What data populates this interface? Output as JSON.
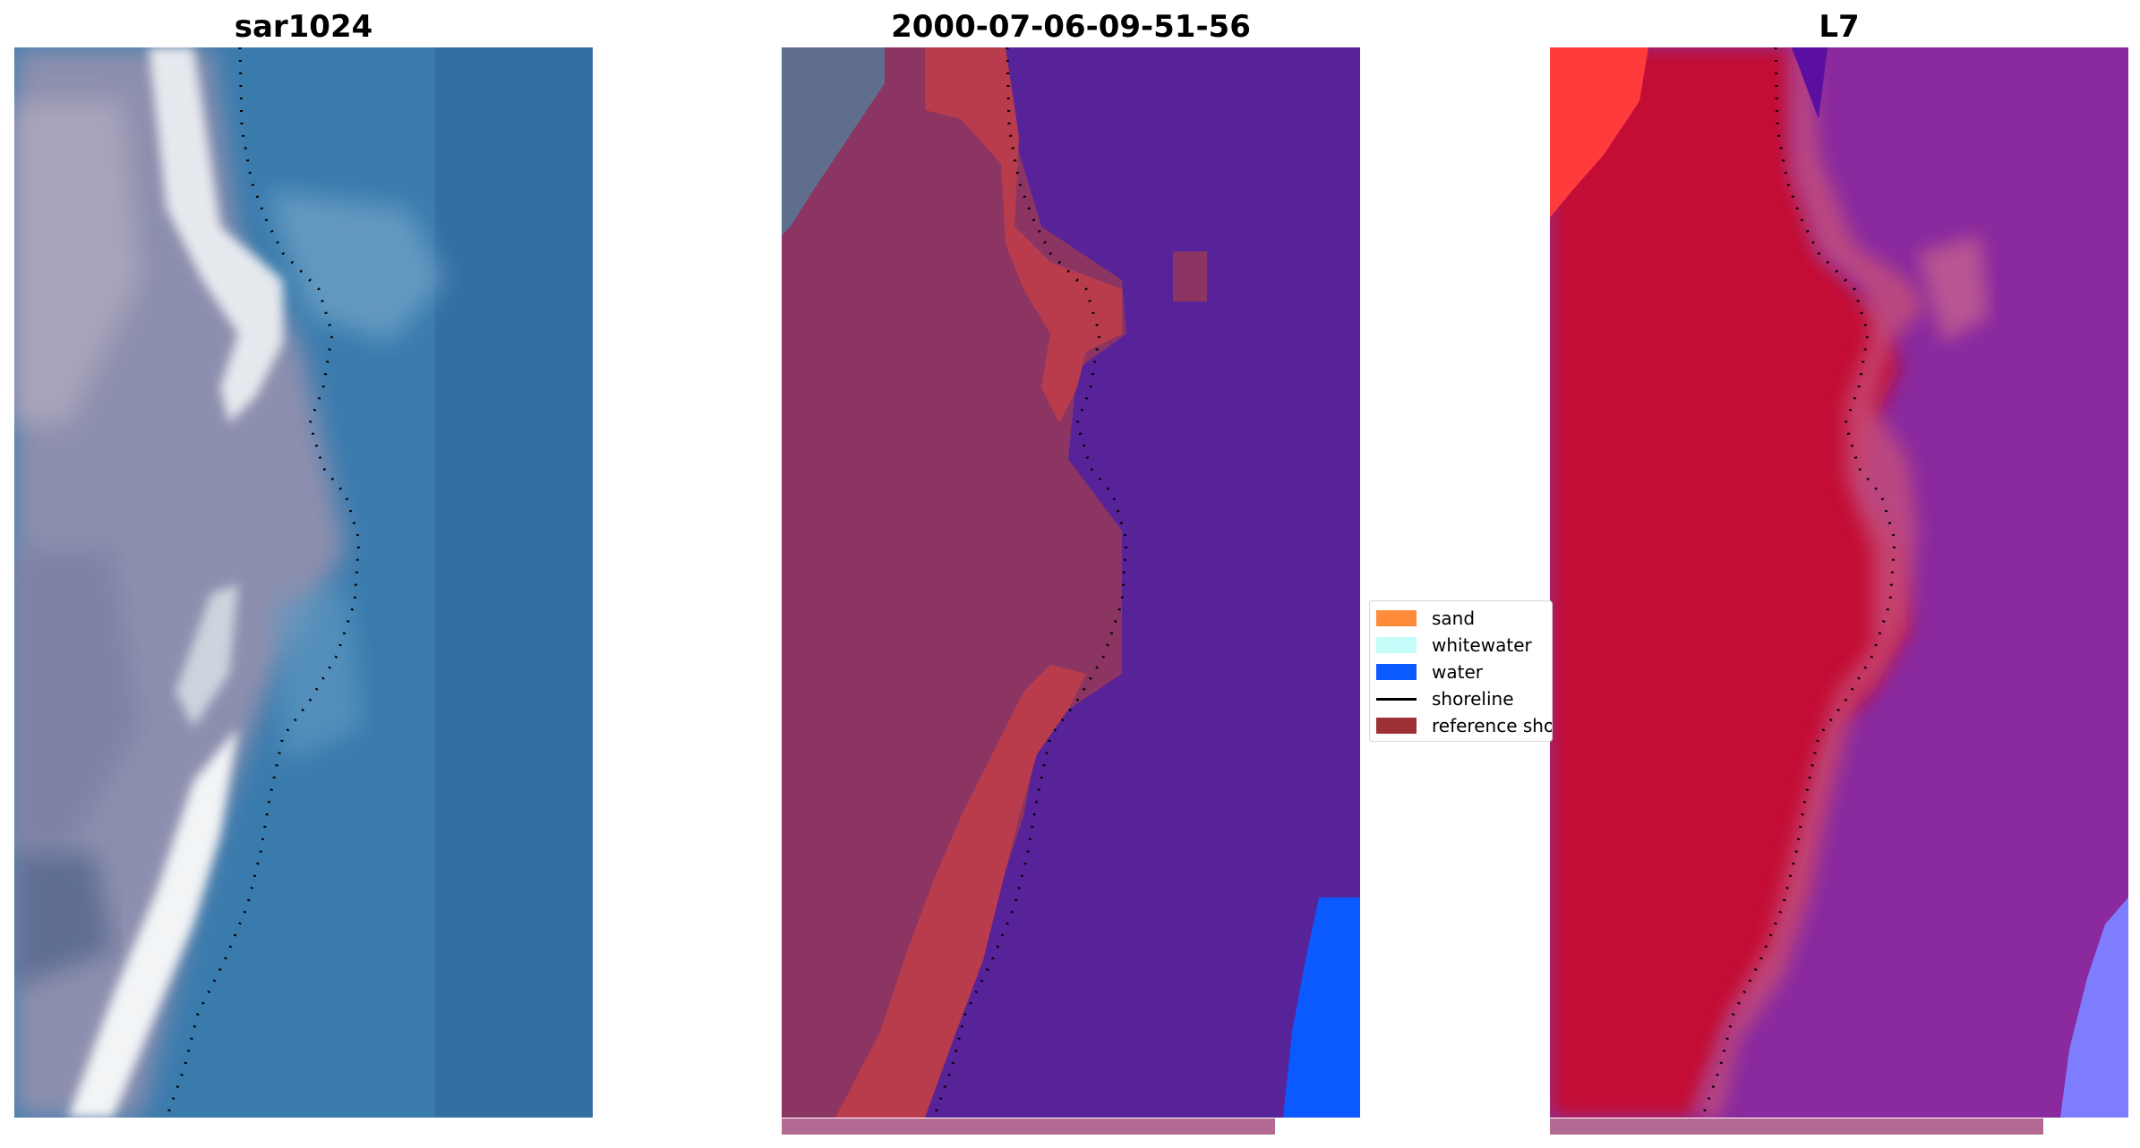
{
  "panels": [
    {
      "title": "sar1024",
      "kind": "rgb"
    },
    {
      "title": "2000-07-06-09-51-56",
      "kind": "classified"
    },
    {
      "title": "L7",
      "kind": "false-color"
    }
  ],
  "legend": {
    "items": [
      {
        "label": "sand",
        "color": "#ff8c3a"
      },
      {
        "label": "whitewater",
        "color": "#c6fcf9"
      },
      {
        "label": "water",
        "color": "#0a5aff"
      },
      {
        "label": "shoreline",
        "color": "#000000"
      },
      {
        "label": "reference sho",
        "color": "#9e3138"
      }
    ]
  },
  "colors": {
    "ocean_rgb": "#3a7bad",
    "ocean_deep": "#2f5f94",
    "land_rgb": "#8f92b0",
    "whitewater_rgb": "#e8ecf0",
    "class_water_mask": "#582299",
    "class_shore_band": "#b93c4c",
    "class_land": "#8c3563",
    "class_water_edge": "#0a5aff",
    "l7_land": "#c31034",
    "l7_water": "#8a2a9e",
    "l7_edge": "#ff3b3b",
    "l7_water_edge": "#7f7dff",
    "bottom_strip": "#b46a92"
  }
}
